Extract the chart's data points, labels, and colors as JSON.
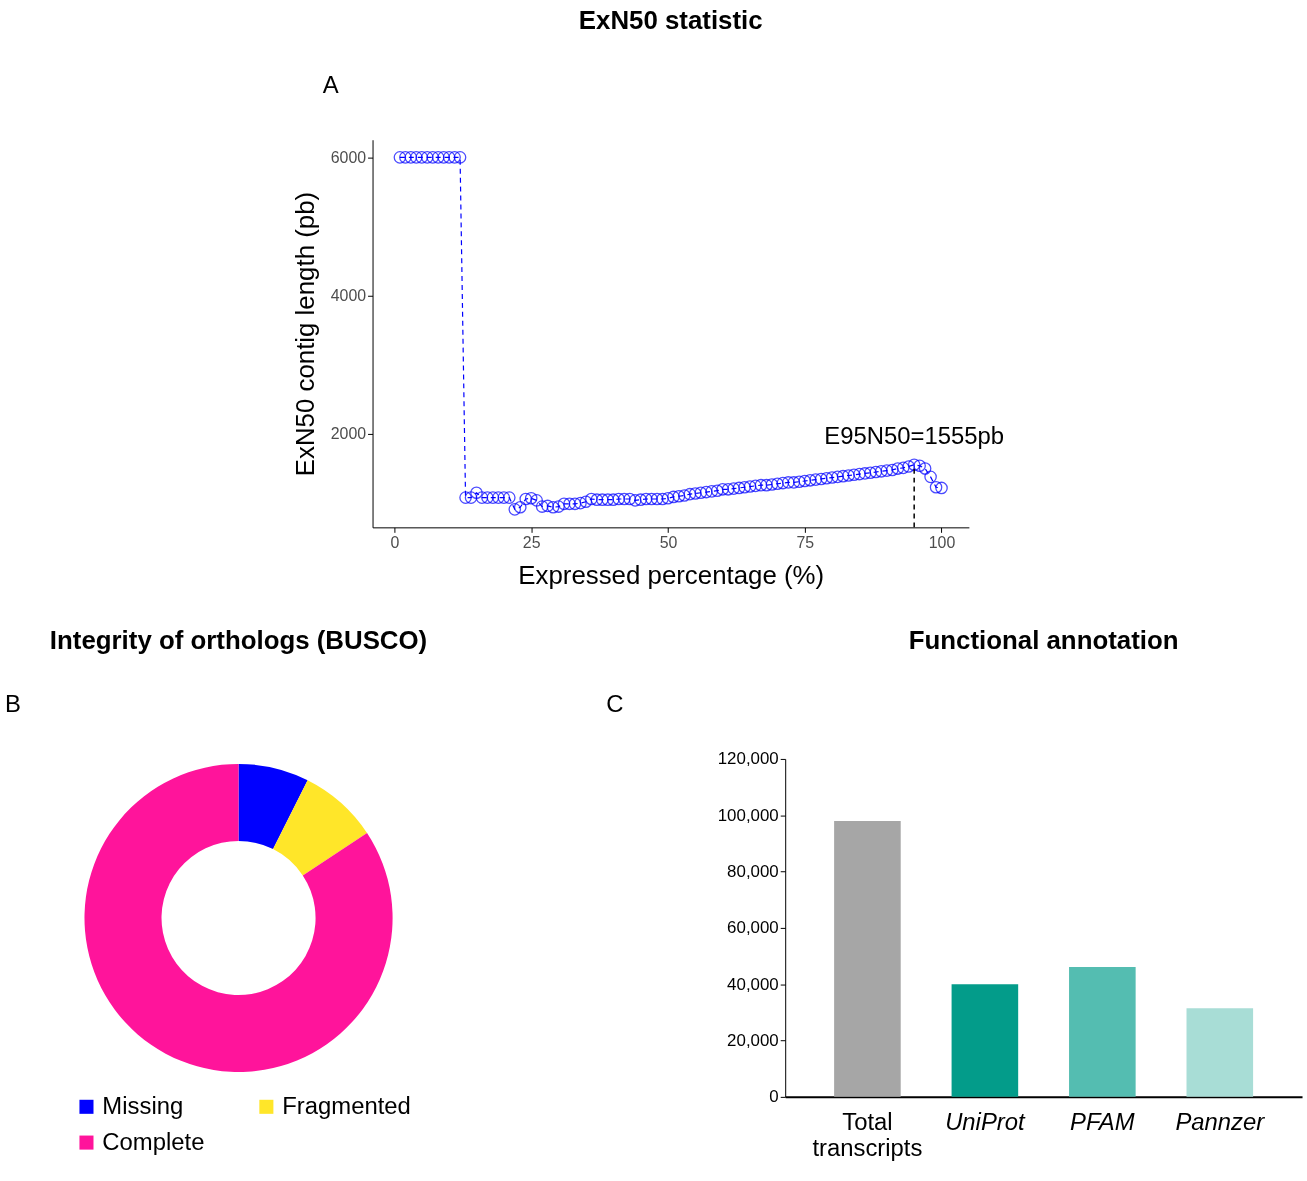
{
  "chart_data": [
    {
      "type": "line",
      "title": "ExN50 statistic",
      "xlabel": "Expressed percentage (%)",
      "ylabel": "ExN50 contig length (pb)",
      "x": [
        1,
        2,
        3,
        4,
        5,
        6,
        7,
        8,
        9,
        10,
        11,
        12,
        13,
        14,
        15,
        16,
        17,
        18,
        19,
        20,
        21,
        22,
        23,
        24,
        25,
        26,
        27,
        28,
        29,
        30,
        31,
        32,
        33,
        34,
        35,
        36,
        37,
        38,
        39,
        40,
        41,
        42,
        43,
        44,
        45,
        46,
        47,
        48,
        49,
        50,
        51,
        52,
        53,
        54,
        55,
        56,
        57,
        58,
        59,
        60,
        61,
        62,
        63,
        64,
        65,
        66,
        67,
        68,
        69,
        70,
        71,
        72,
        73,
        74,
        75,
        76,
        77,
        78,
        79,
        80,
        81,
        82,
        83,
        84,
        85,
        86,
        87,
        88,
        89,
        90,
        91,
        92,
        93,
        94,
        95,
        96,
        97,
        98,
        99,
        100
      ],
      "series": [
        {
          "color": "#0000ff",
          "values": [
            6000,
            6000,
            6000,
            6000,
            6000,
            6000,
            6000,
            6000,
            6000,
            6000,
            6000,
            6000,
            1080,
            1080,
            1150,
            1080,
            1080,
            1080,
            1080,
            1080,
            1080,
            910,
            940,
            1060,
            1070,
            1040,
            950,
            960,
            940,
            950,
            990,
            990,
            990,
            1000,
            1020,
            1060,
            1050,
            1050,
            1050,
            1050,
            1060,
            1060,
            1060,
            1040,
            1050,
            1060,
            1060,
            1060,
            1060,
            1070,
            1090,
            1100,
            1110,
            1130,
            1140,
            1150,
            1160,
            1170,
            1180,
            1200,
            1200,
            1210,
            1220,
            1230,
            1240,
            1250,
            1260,
            1260,
            1270,
            1280,
            1290,
            1300,
            1300,
            1310,
            1320,
            1330,
            1340,
            1350,
            1360,
            1370,
            1380,
            1390,
            1400,
            1410,
            1420,
            1430,
            1440,
            1450,
            1460,
            1470,
            1480,
            1500,
            1510,
            1530,
            1555,
            1540,
            1500,
            1380,
            1230,
            1220
          ]
        }
      ],
      "marker": "circle",
      "line_style": "dashed",
      "xlim": [
        -4,
        105
      ],
      "xticks": [
        0,
        25,
        50,
        75,
        100
      ],
      "ylim": [
        650,
        6255
      ],
      "yticks": [
        2000,
        4000,
        6000
      ],
      "ref_lines": [
        {
          "axis": "x",
          "value": 95,
          "color": "#000000",
          "line_style": "dashed"
        }
      ],
      "annotations": [
        "A",
        {
          "text": "E95N50=1555pb",
          "x": 95,
          "y": 1555
        }
      ],
      "grid": false,
      "legend": false
    },
    {
      "type": "donut",
      "title": "Integrity of orthologs (BUSCO)",
      "categories": [
        "Missing",
        "Fragmented",
        "Complete"
      ],
      "values": [
        7.4,
        8.3,
        84.3
      ],
      "colors": [
        "#0000ff",
        "#ffe629",
        "#ff149b"
      ],
      "legend": "bottom",
      "annotations": [
        "B"
      ]
    },
    {
      "type": "bar",
      "title": "Functional annotation",
      "categories": [
        "Total transcripts",
        "UniProt",
        "PFAM",
        "Pannzer"
      ],
      "values": [
        98000,
        40000,
        46100,
        31500
      ],
      "colors": [
        "#a6a6a6",
        "#039c8a",
        "#54bdb1",
        "#a8ddd6"
      ],
      "ylim": [
        0,
        120000
      ],
      "yticks": [
        0,
        {
          "value": 20000,
          "label": "20,000"
        },
        {
          "value": 40000,
          "label": "40,000"
        },
        {
          "value": 60000,
          "label": "60,000"
        },
        {
          "value": 80000,
          "label": "80,000"
        },
        {
          "value": 100000,
          "label": "100,000"
        },
        {
          "value": 120000,
          "label": "120,000"
        }
      ],
      "grid": false,
      "annotations": [
        "C"
      ]
    }
  ]
}
